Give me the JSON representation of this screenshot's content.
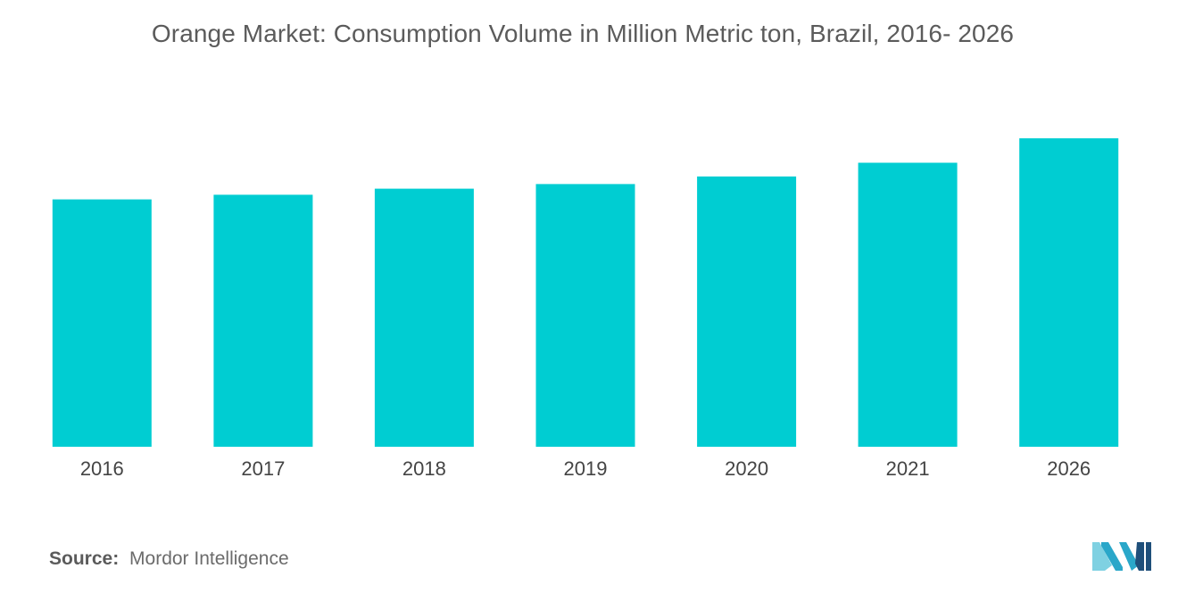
{
  "chart_data": {
    "type": "bar",
    "title": "Orange Market: Consumption Volume in Million Metric ton, Brazil, 2016- 2026",
    "categories": [
      "2016",
      "2017",
      "2018",
      "2019",
      "2020",
      "2021",
      "2026"
    ],
    "values": [
      8.1,
      8.25,
      8.45,
      8.6,
      8.85,
      9.3,
      10.1
    ],
    "ylim": [
      0,
      12
    ],
    "xlabel": "",
    "ylabel": "",
    "grid": false,
    "legend": "none",
    "bar_color": "#00cdd2"
  },
  "source": {
    "label": "Source:",
    "text": "Mordor Intelligence"
  },
  "logo": {
    "icon": "mordor-intelligence-logo-icon",
    "colors": [
      "#1f4f7a",
      "#2aa7c9",
      "#7fd1e2"
    ]
  }
}
